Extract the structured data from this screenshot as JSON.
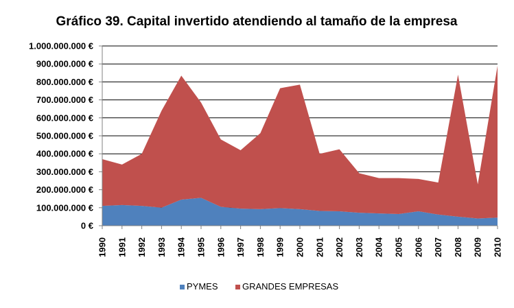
{
  "chart_data": {
    "type": "area",
    "stacked": true,
    "title": "Gráfico 39. Capital invertido atendiendo al tamaño de la empresa",
    "xlabel": "",
    "ylabel": "",
    "categories": [
      "1990",
      "1991",
      "1992",
      "1993",
      "1994",
      "1995",
      "1996",
      "1997",
      "1998",
      "1999",
      "2000",
      "2001",
      "2002",
      "2003",
      "2004",
      "2005",
      "2006",
      "2007",
      "2008",
      "2009",
      "2010"
    ],
    "ylim": [
      0,
      1000000000
    ],
    "yticks": [
      0,
      100000000,
      200000000,
      300000000,
      400000000,
      500000000,
      600000000,
      700000000,
      800000000,
      900000000,
      1000000000
    ],
    "ytick_labels": [
      "0 €",
      "100.000.000 €",
      "200.000.000 €",
      "300.000.000 €",
      "400.000.000 €",
      "500.000.000 €",
      "600.000.000 €",
      "700.000.000 €",
      "800.000.000 €",
      "900.000.000 €",
      "1.000.000.000 €"
    ],
    "grid": true,
    "legend_position": "bottom",
    "series": [
      {
        "name": "PYMES",
        "color": "#4F81BD",
        "values": [
          110000000,
          115000000,
          110000000,
          100000000,
          145000000,
          155000000,
          105000000,
          95000000,
          92000000,
          98000000,
          92000000,
          82000000,
          80000000,
          72000000,
          68000000,
          65000000,
          80000000,
          62000000,
          50000000,
          40000000,
          45000000
        ]
      },
      {
        "name": "GRANDES EMPRESAS",
        "color": "#C0504D",
        "values": [
          260000000,
          225000000,
          290000000,
          540000000,
          690000000,
          530000000,
          375000000,
          325000000,
          423000000,
          667000000,
          693000000,
          318000000,
          345000000,
          220000000,
          197000000,
          200000000,
          180000000,
          178000000,
          790000000,
          190000000,
          845000000
        ]
      }
    ]
  }
}
